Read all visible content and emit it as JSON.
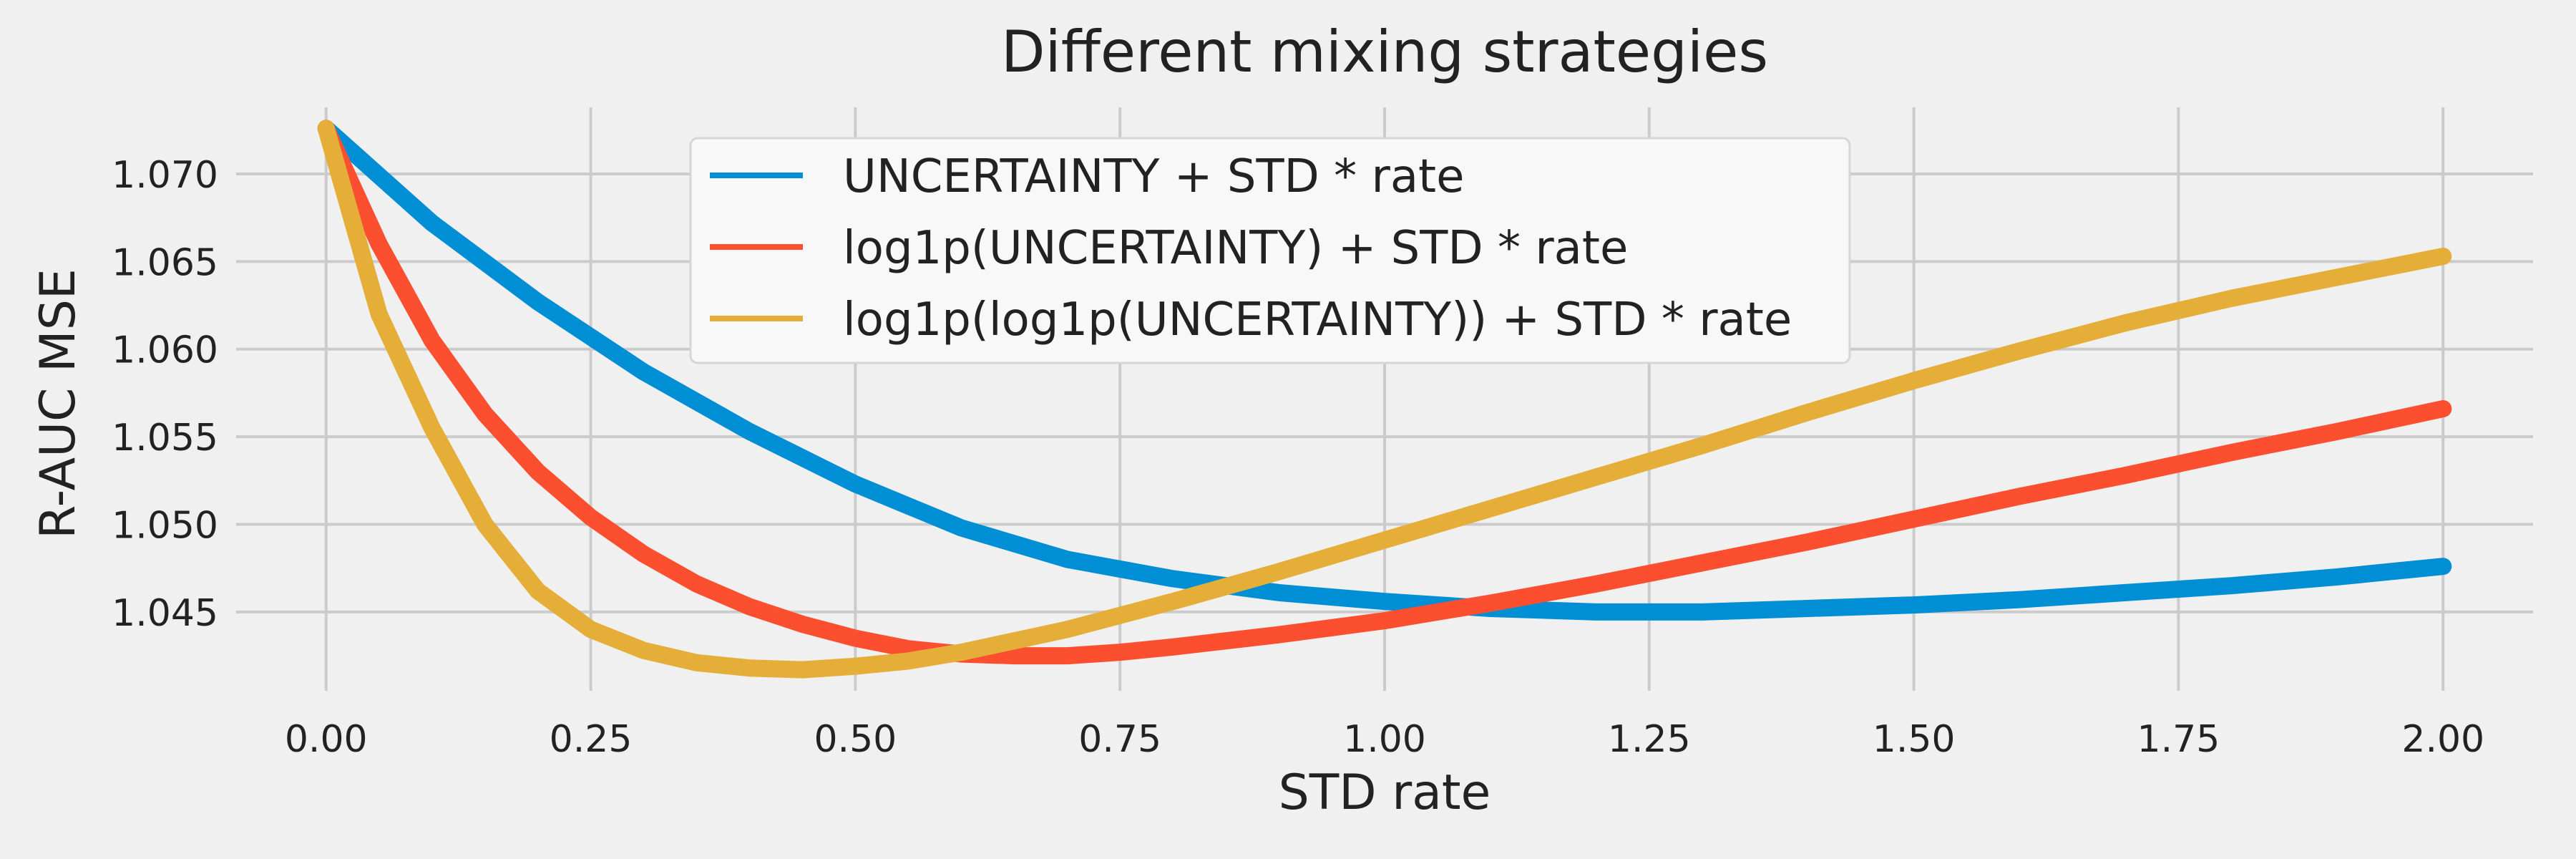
{
  "chart_data": {
    "type": "line",
    "title": "Different mixing strategies",
    "xlabel": "STD rate",
    "ylabel": "R-AUC MSE",
    "xlim": [
      -0.085,
      2.085
    ],
    "ylim": [
      1.0405,
      1.0738
    ],
    "xticks": [
      0.0,
      0.25,
      0.5,
      0.75,
      1.0,
      1.25,
      1.5,
      1.75,
      2.0
    ],
    "xtick_labels": [
      "0.00",
      "0.25",
      "0.50",
      "0.75",
      "1.00",
      "1.25",
      "1.50",
      "1.75",
      "2.00"
    ],
    "yticks": [
      1.045,
      1.05,
      1.055,
      1.06,
      1.065,
      1.07
    ],
    "ytick_labels": [
      "1.045",
      "1.050",
      "1.055",
      "1.060",
      "1.065",
      "1.070"
    ],
    "grid": true,
    "legend_position": "top-center",
    "series": [
      {
        "name": "UNCERTAINTY + STD * rate",
        "color": "#008fd5",
        "x": [
          0.0,
          0.1,
          0.2,
          0.3,
          0.4,
          0.5,
          0.6,
          0.7,
          0.8,
          0.9,
          1.0,
          1.1,
          1.2,
          1.3,
          1.4,
          1.5,
          1.6,
          1.7,
          1.8,
          1.9,
          2.0
        ],
        "y": [
          1.0726,
          1.0672,
          1.0627,
          1.0587,
          1.0553,
          1.0523,
          1.0498,
          1.048,
          1.0469,
          1.0461,
          1.0456,
          1.0452,
          1.045,
          1.045,
          1.0452,
          1.0454,
          1.0457,
          1.0461,
          1.0465,
          1.047,
          1.0476
        ]
      },
      {
        "name": "log1p(UNCERTAINTY) + STD * rate",
        "color": "#fc4f30",
        "x": [
          0.0,
          0.05,
          0.1,
          0.15,
          0.2,
          0.25,
          0.3,
          0.35,
          0.4,
          0.45,
          0.5,
          0.55,
          0.6,
          0.65,
          0.7,
          0.75,
          0.8,
          0.9,
          1.0,
          1.1,
          1.2,
          1.3,
          1.4,
          1.5,
          1.6,
          1.7,
          1.8,
          1.9,
          2.0
        ],
        "y": [
          1.0726,
          1.066,
          1.0605,
          1.0563,
          1.053,
          1.0504,
          1.0483,
          1.0466,
          1.0453,
          1.0443,
          1.0435,
          1.0429,
          1.0426,
          1.0425,
          1.0425,
          1.0427,
          1.043,
          1.0437,
          1.0445,
          1.0455,
          1.0466,
          1.0478,
          1.049,
          1.0503,
          1.0516,
          1.0528,
          1.0541,
          1.0553,
          1.0566
        ]
      },
      {
        "name": "log1p(log1p(UNCERTAINTY)) + STD * rate",
        "color": "#e5ae38",
        "x": [
          0.0,
          0.05,
          0.1,
          0.15,
          0.2,
          0.25,
          0.3,
          0.35,
          0.4,
          0.45,
          0.5,
          0.55,
          0.6,
          0.7,
          0.8,
          0.9,
          1.0,
          1.1,
          1.2,
          1.3,
          1.4,
          1.5,
          1.6,
          1.7,
          1.8,
          1.9,
          2.0
        ],
        "y": [
          1.0726,
          1.062,
          1.0555,
          1.05,
          1.0462,
          1.044,
          1.0428,
          1.0421,
          1.0418,
          1.0417,
          1.0419,
          1.0422,
          1.0427,
          1.044,
          1.0456,
          1.0473,
          1.0491,
          1.0509,
          1.0527,
          1.0545,
          1.0564,
          1.0582,
          1.0599,
          1.0615,
          1.0629,
          1.0641,
          1.0653
        ]
      }
    ]
  }
}
